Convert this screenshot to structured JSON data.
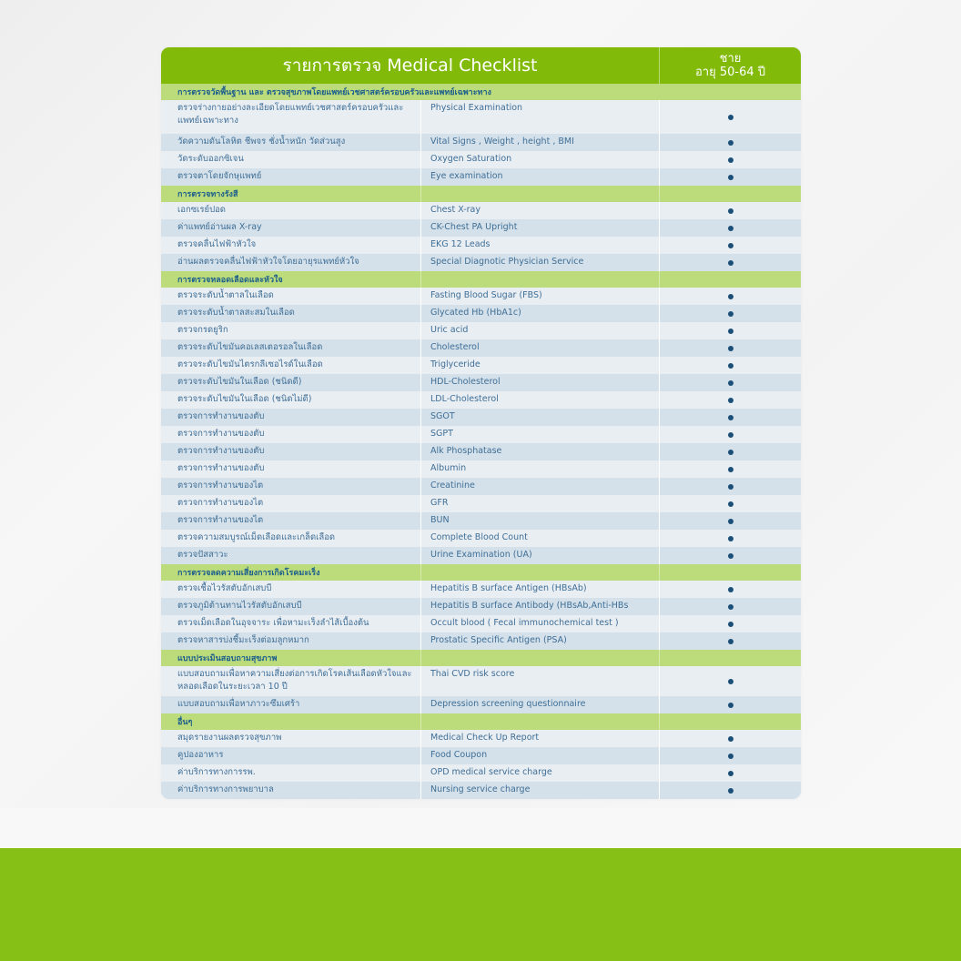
{
  "header": {
    "title": "รายการตรวจ Medical Checklist",
    "column_gender": "ชาย",
    "column_age": "อายุ 50-64 ปี"
  },
  "colors": {
    "header_green": "#82ba0a",
    "section_green": "#bcdc7b",
    "row_light": "#e9eef3",
    "row_dark": "#d4e1ea",
    "text_blue": "#3f6e96",
    "dot": "#1b4f78",
    "bottom_band": "#86bf15"
  },
  "sections": [
    {
      "title": "การตรวจวัดพื้นฐาน และ ตรวจสุขภาพโดยแพทย์เวชศาสตร์ครอบครัวและแพทย์เฉพาะทาง",
      "items": [
        {
          "th": "ตรวจร่างกายอย่างละเอียดโดยแพทย์เวชศาสตร์ครอบครัวและแพทย์เฉพาะทาง",
          "en": "Physical Examination",
          "mark": "●"
        },
        {
          "th": "วัดความดันโลหิต ชีพจร ชั่งน้ำหนัก วัดส่วนสูง",
          "en": "Vital Signs , Weight , height , BMI",
          "mark": "●"
        },
        {
          "th": "วัดระดับออกซิเจน",
          "en": "Oxygen Saturation",
          "mark": "●"
        },
        {
          "th": "ตรวจตาโดยจักษุแพทย์",
          "en": "Eye examination",
          "mark": "●"
        }
      ]
    },
    {
      "title": "การตรวจทางรังสี",
      "items": [
        {
          "th": "เอกซเรย์ปอด",
          "en": "Chest X-ray",
          "mark": "●"
        },
        {
          "th": "ค่าแพทย์อ่านผล X-ray",
          "en": "CK-Chest PA Upright",
          "mark": "●"
        },
        {
          "th": "ตรวจคลื่นไฟฟ้าหัวใจ",
          "en": "EKG 12 Leads",
          "mark": "●"
        },
        {
          "th": "อ่านผลตรวจคลื่นไฟฟ้าหัวใจโดยอายุรแพทย์หัวใจ",
          "en": "Special Diagnotic Physician Service",
          "mark": "●"
        }
      ]
    },
    {
      "title": "การตรวจหลอดเลือดและหัวใจ",
      "items": [
        {
          "th": "ตรวจระดับน้ำตาลในเลือด",
          "en": "Fasting Blood Sugar (FBS)",
          "mark": "●"
        },
        {
          "th": "ตรวจระดับน้ำตาลสะสมในเลือด",
          "en": "Glycated Hb (HbA1c)",
          "mark": "●"
        },
        {
          "th": "ตรวจกรดยูริก",
          "en": "Uric acid",
          "mark": "●"
        },
        {
          "th": "ตรวจระดับไขมันคอเลสเตอรอลในเลือด",
          "en": "Cholesterol",
          "mark": "●"
        },
        {
          "th": "ตรวจระดับไขมันไตรกลีเซอไรด์ในเลือด",
          "en": "Triglyceride",
          "mark": "●"
        },
        {
          "th": "ตรวจระดับไขมันในเลือด (ชนิดดี)",
          "en": "HDL-Cholesterol",
          "mark": "●"
        },
        {
          "th": "ตรวจระดับไขมันในเลือด (ชนิดไม่ดี)",
          "en": "LDL-Cholesterol",
          "mark": "●"
        },
        {
          "th": "ตรวจการทำงานของตับ",
          "en": "SGOT",
          "mark": "●"
        },
        {
          "th": "ตรวจการทำงานของตับ",
          "en": "SGPT",
          "mark": "●"
        },
        {
          "th": "ตรวจการทำงานของตับ",
          "en": "Alk Phosphatase",
          "mark": "●"
        },
        {
          "th": "ตรวจการทำงานของตับ",
          "en": "Albumin",
          "mark": "●"
        },
        {
          "th": "ตรวจการทำงานของไต",
          "en": "Creatinine",
          "mark": "●"
        },
        {
          "th": "ตรวจการทำงานของไต",
          "en": "GFR",
          "mark": "●"
        },
        {
          "th": "ตรวจการทำงานของไต",
          "en": "BUN",
          "mark": "●"
        },
        {
          "th": "ตรวจความสมบูรณ์เม็ดเลือดและเกล็ดเลือด",
          "en": "Complete Blood Count",
          "mark": "●"
        },
        {
          "th": "ตรวจปัสสาวะ",
          "en": "Urine Examination (UA)",
          "mark": "●"
        }
      ]
    },
    {
      "title": "การตรวจลดความเสี่ยงการเกิดโรคมะเร็ง",
      "items": [
        {
          "th": "ตรวจเชื้อไวรัสตับอักเสบบี",
          "en": "Hepatitis B surface Antigen (HBsAb)",
          "mark": "●"
        },
        {
          "th": "ตรวจภูมิต้านทานไวรัสตับอักเสบบี",
          "en": "Hepatitis B surface Antibody (HBsAb,Anti-HBs",
          "mark": "●"
        },
        {
          "th": "ตรวจเม็ดเลือดในอุจจาระ เพื่อหามะเร็งลำไส้เบื้องต้น",
          "en": "Occult blood ( Fecal immunochemical test )",
          "mark": "●"
        },
        {
          "th": "ตรวจหาสารบ่งชี้มะเร็งต่อมลูกหมาก",
          "en": "Prostatic Specific Antigen (PSA)",
          "mark": "●"
        }
      ]
    },
    {
      "title": "แบบประเมินสอบถามสุขภาพ",
      "items": [
        {
          "th": "แบบสอบถามเพื่อหาความเสี่ยงต่อการเกิดโรคเส้นเลือดหัวใจและหลอดเลือดในระยะเวลา 10 ปี",
          "en": "Thai CVD risk score",
          "mark": "●"
        },
        {
          "th": "แบบสอบถามเพื่อหาภาวะซึมเศร้า",
          "en": "Depression screening questionnaire",
          "mark": "●"
        }
      ]
    },
    {
      "title": "อื่นๆ",
      "items": [
        {
          "th": "สมุดรายงานผลตรวจสุขภาพ",
          "en": "Medical Check Up Report",
          "mark": "●"
        },
        {
          "th": "คูปองอาหาร",
          "en": "Food Coupon",
          "mark": "●"
        },
        {
          "th": "ค่าบริการทางการรพ.",
          "en": "OPD medical service charge",
          "mark": "●"
        },
        {
          "th": "ค่าบริการทางการพยาบาล",
          "en": "Nursing service charge",
          "mark": "●"
        }
      ]
    }
  ]
}
